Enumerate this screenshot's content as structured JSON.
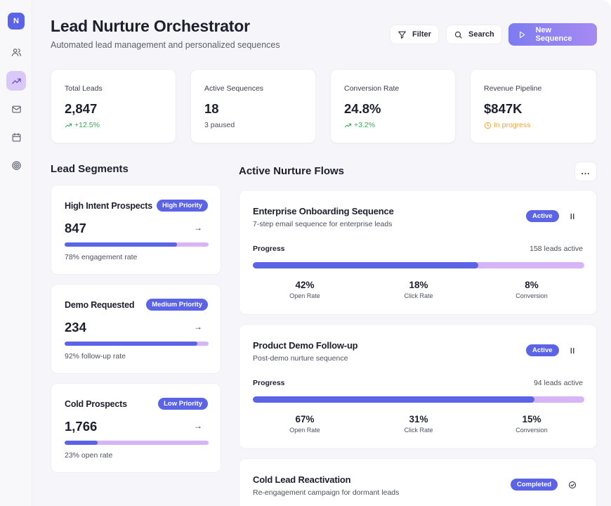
{
  "sidebar": {
    "logo_letter": "N",
    "items": [
      {
        "icon": "users-icon"
      },
      {
        "icon": "trending-up-icon",
        "active": true
      },
      {
        "icon": "mail-icon"
      },
      {
        "icon": "calendar-icon"
      },
      {
        "icon": "target-icon"
      }
    ]
  },
  "header": {
    "title": "Lead Nurture Orchestrator",
    "subtitle": "Automated lead management and personalized sequences",
    "filter_label": "Filter",
    "search_label": "Search",
    "new_sequence_label": "New Sequence"
  },
  "stats": [
    {
      "label": "Total Leads",
      "value": "2,847",
      "sub": "+12.5%",
      "sub_icon": "trending-up-icon",
      "sub_color": "#2eae4f"
    },
    {
      "label": "Active Sequences",
      "value": "18",
      "sub": "3 paused"
    },
    {
      "label": "Conversion Rate",
      "value": "24.8%",
      "sub": "+3.2%",
      "sub_icon": "trending-up-icon",
      "sub_color": "#2eae4f"
    },
    {
      "label": "Revenue Pipeline",
      "value": "$847K",
      "sub": "In progress",
      "sub_icon": "clock-icon",
      "sub_color": "#f0a43a"
    }
  ],
  "segments": {
    "title": "Lead Segments",
    "items": [
      {
        "name": "High Intent Prospects",
        "badge": "High Priority",
        "value": "847",
        "progress": 0.78,
        "caption": "78% engagement rate"
      },
      {
        "name": "Demo Requested",
        "badge": "Medium Priority",
        "value": "234",
        "progress": 0.92,
        "caption": "92% follow-up rate"
      },
      {
        "name": "Cold Prospects",
        "badge": "Low Priority",
        "value": "1,766",
        "progress": 0.23,
        "caption": "23% open rate"
      }
    ]
  },
  "flows": {
    "title": "Active Nurture Flows",
    "more_label": "...",
    "items": [
      {
        "name": "Enterprise Onboarding Sequence",
        "desc": "7-step email sequence for enterprise leads",
        "status": "Active",
        "control_icon": "pause-icon",
        "progress_label": "Progress",
        "leads_active": "158 leads active",
        "progress": 0.68,
        "metrics": [
          {
            "value": "42%",
            "label": "Open Rate"
          },
          {
            "value": "18%",
            "label": "Click Rate"
          },
          {
            "value": "8%",
            "label": "Conversion"
          }
        ]
      },
      {
        "name": "Product Demo Follow-up",
        "desc": "Post-demo nurture sequence",
        "status": "Active",
        "control_icon": "pause-icon",
        "progress_label": "Progress",
        "leads_active": "94 leads active",
        "progress": 0.85,
        "metrics": [
          {
            "value": "67%",
            "label": "Open Rate"
          },
          {
            "value": "31%",
            "label": "Click Rate"
          },
          {
            "value": "15%",
            "label": "Conversion"
          }
        ]
      },
      {
        "name": "Cold Lead Reactivation",
        "desc": "Re-engagement campaign for dormant leads",
        "status": "Completed",
        "control_icon": "check-circle-icon"
      }
    ]
  },
  "colors": {
    "accent": "#5b63e6",
    "accent_light": "#d7b4f5",
    "positive": "#2eae4f",
    "warning": "#f0a43a"
  }
}
